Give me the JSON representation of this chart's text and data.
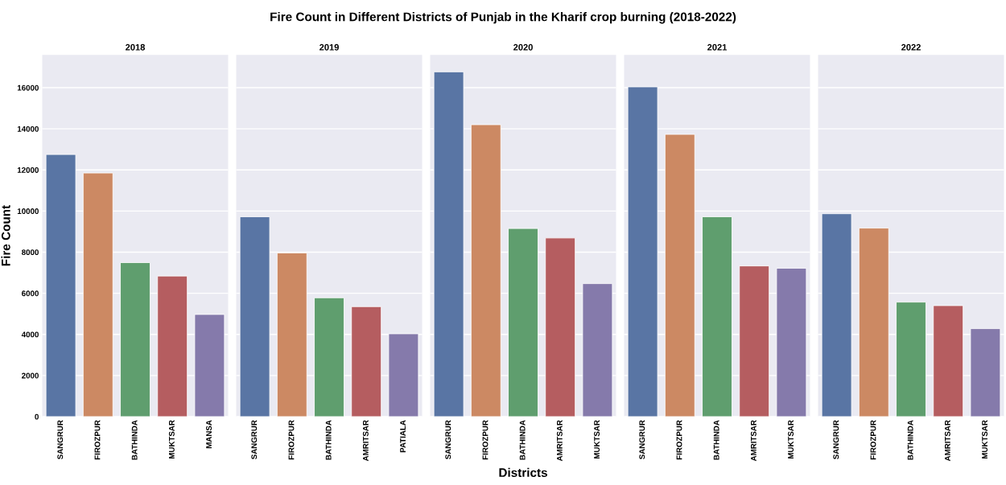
{
  "chart_data": [
    {
      "type": "bar",
      "title": "2018",
      "ylabel": "Fire Count",
      "categories": [
        "SANGRUR",
        "FIROZPUR",
        "BATHINDA",
        "MUKTSAR",
        "MANSA"
      ],
      "values": [
        12750,
        11850,
        7490,
        6840,
        4970
      ],
      "colors": [
        "#5975a4",
        "#cc8963",
        "#5f9e6e",
        "#b55d60",
        "#857aab"
      ],
      "ylim": [
        0,
        17600
      ],
      "yticks": [
        0,
        2000,
        4000,
        6000,
        8000,
        10000,
        12000,
        14000,
        16000
      ],
      "grid": "y"
    },
    {
      "type": "bar",
      "title": "2019",
      "categories": [
        "SANGRUR",
        "FIROZPUR",
        "BATHINDA",
        "AMRITSAR",
        "PATIALA"
      ],
      "values": [
        9720,
        7960,
        5780,
        5350,
        4030
      ],
      "colors": [
        "#5975a4",
        "#cc8963",
        "#5f9e6e",
        "#b55d60",
        "#857aab"
      ],
      "ylim": [
        0,
        17600
      ],
      "yticks": [
        0,
        2000,
        4000,
        6000,
        8000,
        10000,
        12000,
        14000,
        16000
      ],
      "grid": "y",
      "tick_labels": "x"
    },
    {
      "type": "bar",
      "title": "2020",
      "xlabel": "Districts",
      "annotations": [
        "Fire Count in Different Districts of Punjab in the Kharif crop burning (2018-2022)"
      ],
      "categories": [
        "SANGRUR",
        "FIROZPUR",
        "BATHINDA",
        "AMRITSAR",
        "MUKTSAR"
      ],
      "values": [
        16770,
        14200,
        9150,
        8690,
        6470
      ],
      "colors": [
        "#5975a4",
        "#cc8963",
        "#5f9e6e",
        "#b55d60",
        "#857aab"
      ],
      "ylim": [
        0,
        17600
      ],
      "yticks": [
        0,
        2000,
        4000,
        6000,
        8000,
        10000,
        12000,
        14000,
        16000
      ],
      "grid": "y",
      "tick_labels": "x"
    },
    {
      "type": "bar",
      "title": "2021",
      "categories": [
        "SANGRUR",
        "FIROZPUR",
        "BATHINDA",
        "AMRITSAR",
        "MUKTSAR"
      ],
      "values": [
        16040,
        13730,
        9720,
        7330,
        7220
      ],
      "colors": [
        "#5975a4",
        "#cc8963",
        "#5f9e6e",
        "#b55d60",
        "#857aab"
      ],
      "ylim": [
        0,
        17600
      ],
      "yticks": [
        0,
        2000,
        4000,
        6000,
        8000,
        10000,
        12000,
        14000,
        16000
      ],
      "grid": "y",
      "tick_labels": "x"
    },
    {
      "type": "bar",
      "title": "2022",
      "categories": [
        "SANGRUR",
        "FIROZPUR",
        "BATHINDA",
        "AMRITSAR",
        "MUKTSAR"
      ],
      "values": [
        9870,
        9170,
        5570,
        5400,
        4280
      ],
      "colors": [
        "#5975a4",
        "#cc8963",
        "#5f9e6e",
        "#b55d60",
        "#857aab"
      ],
      "ylim": [
        0,
        17600
      ],
      "yticks": [
        0,
        2000,
        4000,
        6000,
        8000,
        10000,
        12000,
        14000,
        16000
      ],
      "grid": "y",
      "tick_labels": "x"
    }
  ]
}
